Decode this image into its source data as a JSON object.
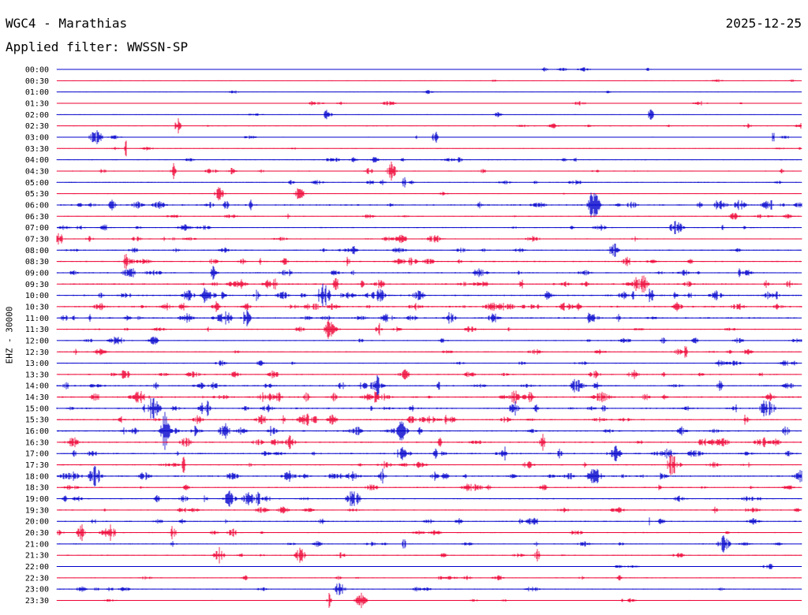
{
  "header": {
    "station": "WGC4 - Marathias",
    "date": "2025-12-25",
    "filter": "Applied filter: WWSSN-SP"
  },
  "chart_data": {
    "type": "line",
    "ylabel": "EHZ - 30000",
    "colors": [
      "#0000cc",
      "#ee0033"
    ],
    "row_labels": [
      "00:00",
      "00:30",
      "01:00",
      "01:30",
      "02:00",
      "02:30",
      "03:00",
      "03:30",
      "04:00",
      "04:30",
      "05:00",
      "05:30",
      "06:00",
      "06:30",
      "07:00",
      "07:30",
      "08:00",
      "08:30",
      "09:00",
      "09:30",
      "10:00",
      "10:30",
      "11:00",
      "11:30",
      "12:00",
      "12:30",
      "13:00",
      "13:30",
      "14:00",
      "14:30",
      "15:00",
      "15:30",
      "16:00",
      "16:30",
      "17:00",
      "17:30",
      "18:00",
      "18:30",
      "19:00",
      "19:30",
      "20:00",
      "20:30",
      "21:00",
      "21:30",
      "22:00",
      "22:30",
      "23:00",
      "23:30"
    ],
    "activity": [
      0.15,
      0.1,
      0.1,
      0.25,
      0.15,
      0.3,
      0.25,
      0.2,
      0.35,
      0.4,
      0.35,
      0.15,
      0.85,
      0.4,
      0.45,
      0.5,
      0.55,
      0.65,
      0.7,
      0.8,
      0.95,
      0.9,
      0.85,
      0.45,
      0.45,
      0.45,
      0.4,
      0.6,
      0.75,
      0.95,
      0.9,
      0.75,
      0.85,
      0.75,
      0.8,
      0.65,
      0.9,
      0.55,
      0.6,
      0.5,
      0.55,
      0.5,
      0.45,
      0.4,
      0.15,
      0.35,
      0.35,
      0.25
    ]
  }
}
